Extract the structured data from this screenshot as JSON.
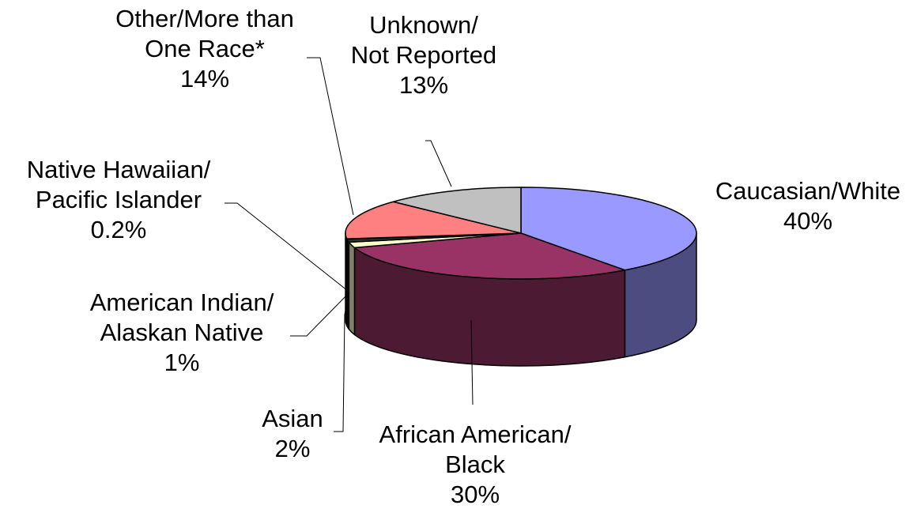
{
  "chart_data": {
    "type": "pie",
    "style": "3d",
    "slices": [
      {
        "label": "Caucasian/White",
        "lines": [
          "Caucasian/White"
        ],
        "pct_text": "40%",
        "value": 40,
        "color": "#9999FF",
        "side_color": "#4C4C80"
      },
      {
        "label": "African American/ Black",
        "lines": [
          "African American/",
          "Black"
        ],
        "pct_text": "30%",
        "value": 30,
        "color": "#993366",
        "side_color": "#4D1A33"
      },
      {
        "label": "Asian",
        "lines": [
          "Asian"
        ],
        "pct_text": "2%",
        "value": 2,
        "color": "#FFFFCC",
        "side_color": "#808066"
      },
      {
        "label": "American Indian/ Alaskan Native",
        "lines": [
          "American Indian/",
          "Alaskan Native"
        ],
        "pct_text": "1%",
        "value": 1,
        "color": "#2E3D2E",
        "side_color": "#172017"
      },
      {
        "label": "Native Hawaiian/ Pacific Islander",
        "lines": [
          "Native Hawaiian/",
          "Pacific Islander"
        ],
        "pct_text": "0.2%",
        "value": 0.2,
        "color": "#660066",
        "side_color": "#330033"
      },
      {
        "label": "Other/More than One Race*",
        "lines": [
          "Other/More than",
          "One Race*"
        ],
        "pct_text": "14%",
        "value": 14,
        "color": "#FF8080",
        "side_color": "#804040"
      },
      {
        "label": "Unknown/ Not Reported",
        "lines": [
          "Unknown/",
          "Not Reported"
        ],
        "pct_text": "13%",
        "value": 13,
        "color": "#C0C0C0",
        "side_color": "#606060"
      }
    ]
  }
}
